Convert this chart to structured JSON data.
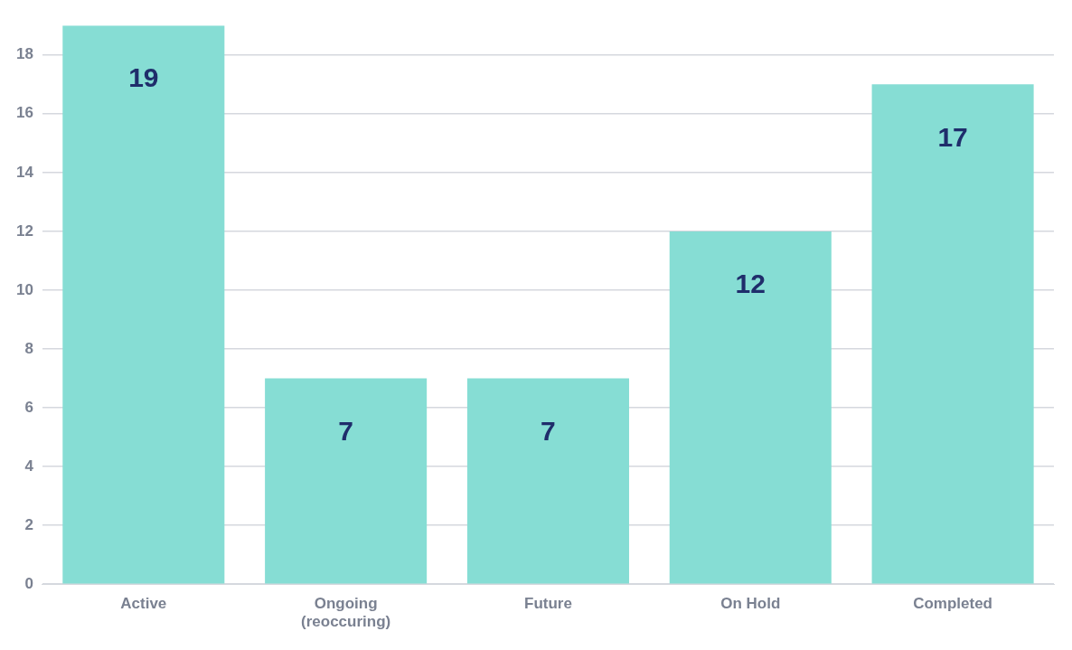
{
  "chart_data": {
    "type": "bar",
    "categories": [
      "Active",
      "Ongoing (reoccuring)",
      "Future",
      "On Hold",
      "Completed"
    ],
    "values": [
      19,
      7,
      7,
      12,
      17
    ],
    "color": "#86ddd4",
    "ylim": [
      0,
      19
    ],
    "yticks": [
      0,
      2,
      4,
      6,
      8,
      10,
      12,
      14,
      16,
      18
    ],
    "grid": "y",
    "data_labels": true,
    "legend": false
  }
}
